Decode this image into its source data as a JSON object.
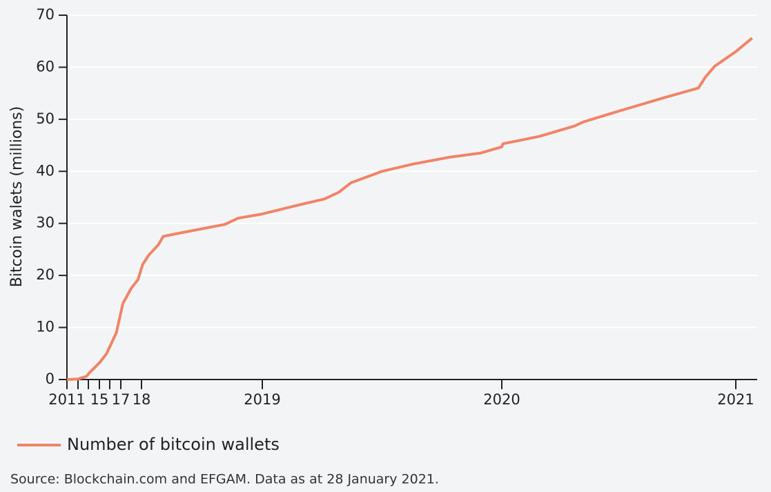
{
  "chart_data": {
    "type": "line",
    "ylabel": "Bitcoin walets (millions)",
    "source": "Source: Blockchain.com and EFGAM. Data as at 28 January 2021.",
    "ylim": [
      0,
      70
    ],
    "yticks": [
      0,
      10,
      20,
      30,
      40,
      50,
      60,
      70
    ],
    "grid": true,
    "xticks": [
      2011,
      {
        "value": 2013,
        "label": null
      },
      {
        "value": 2014,
        "label": null
      },
      {
        "value": 2015,
        "label": "15"
      },
      {
        "value": 2016,
        "label": null
      },
      {
        "value": 2017,
        "label": "17"
      },
      {
        "value": 2018,
        "label": "18"
      },
      2019,
      2020,
      2021
    ],
    "x": [
      2011,
      2013,
      2013.8,
      2014.1,
      2015.05,
      2015.7,
      2016.6,
      2017.1,
      2017.5,
      2017.83,
      2018.01,
      2018.06,
      2018.14,
      2018.18,
      2018.31,
      2018.69,
      2018.8,
      2019.0,
      2019.14,
      2019.26,
      2019.32,
      2019.37,
      2019.5,
      2019.63,
      2019.78,
      2019.91,
      2020.0,
      2020.005,
      2020.16,
      2020.31,
      2020.35,
      2020.51,
      2020.69,
      2020.84,
      2020.87,
      2020.91,
      2021.0,
      2021.07
    ],
    "series": [
      {
        "name": "Number of bitcoin wallets",
        "color": "#f08466",
        "values": [
          0,
          0.1,
          0.6,
          1.3,
          3.3,
          5,
          9,
          14.6,
          17.5,
          19.2,
          22.1,
          23.9,
          25.9,
          27.5,
          28.1,
          29.8,
          31,
          31.8,
          33.4,
          34.7,
          36,
          37.8,
          40,
          41.4,
          42.7,
          43.5,
          44.7,
          45.3,
          46.7,
          48.7,
          49.5,
          51.7,
          54.1,
          56,
          58.1,
          60.2,
          63,
          65.6
        ]
      }
    ]
  }
}
